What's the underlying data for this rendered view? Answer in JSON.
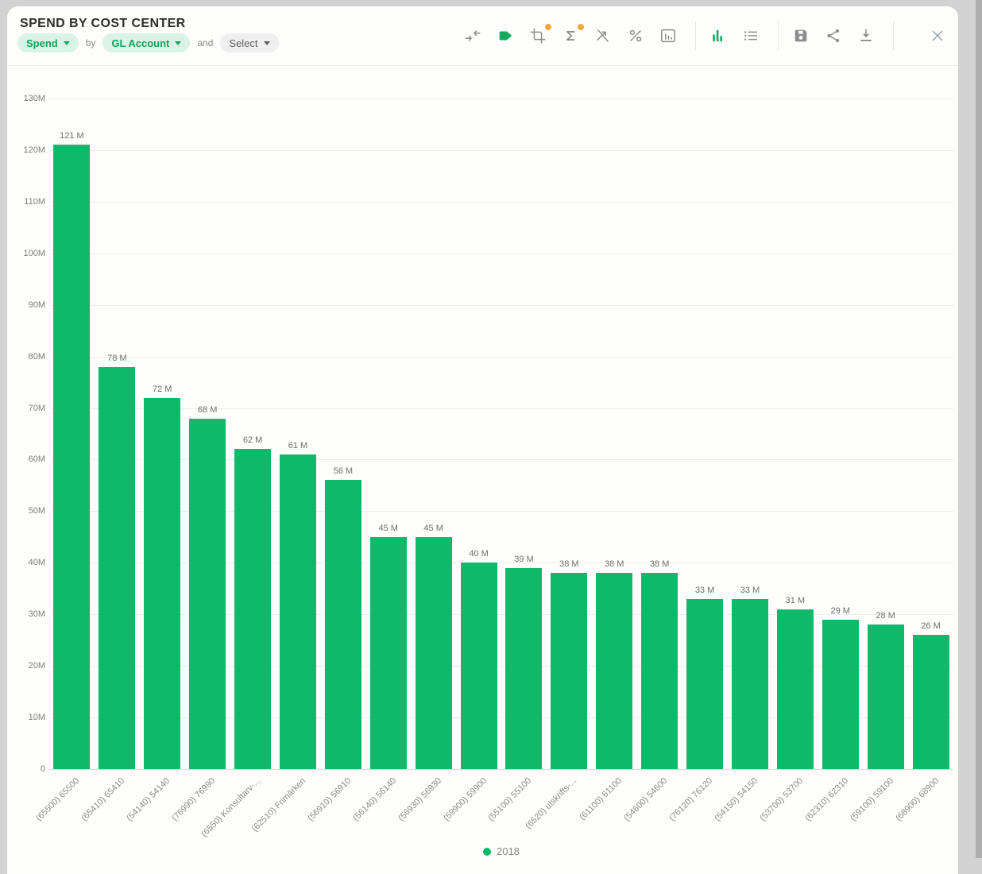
{
  "header": {
    "title": "SPEND BY COST CENTER",
    "measure": "Spend",
    "by_label": "by",
    "dimension": "GL Account",
    "and_label": "and",
    "secondary_dimension": "Select"
  },
  "toolbar": {
    "icons": [
      "merge-arrows-icon",
      "tag-icon",
      "crop-icon",
      "sigma-icon",
      "trend-off-icon",
      "percent-icon",
      "chart-box-icon",
      "bar-chart-view-icon",
      "list-view-icon",
      "save-icon",
      "share-icon",
      "download-icon",
      "close-icon"
    ],
    "badged_icons": [
      "crop-icon",
      "sigma-icon"
    ],
    "active_icon": "bar-chart-view-icon"
  },
  "colors": {
    "accent_green": "#10a95e",
    "pill_bg": "#d9f3e7",
    "pill_text": "#17a35c",
    "badge_orange": "#f2a73b",
    "icon_gray": "#8d8d8d",
    "bar_green": "#0fb969",
    "page_bg": "#d2d2d2"
  },
  "chart_data": {
    "type": "bar",
    "title": "SPEND BY COST CENTER",
    "ymax_m": 130,
    "ylim": [
      0,
      130000000
    ],
    "grid": true,
    "bar_color": "#0fb969",
    "legend_position": "bottom",
    "y_ticks": [
      {
        "v": 0,
        "label": "0"
      },
      {
        "v": 10,
        "label": "10M"
      },
      {
        "v": 20,
        "label": "20M"
      },
      {
        "v": 30,
        "label": "30M"
      },
      {
        "v": 40,
        "label": "40M"
      },
      {
        "v": 50,
        "label": "50M"
      },
      {
        "v": 60,
        "label": "60M"
      },
      {
        "v": 70,
        "label": "70M"
      },
      {
        "v": 80,
        "label": "80M"
      },
      {
        "v": 90,
        "label": "90M"
      },
      {
        "v": 100,
        "label": "100M"
      },
      {
        "v": 110,
        "label": "110M"
      },
      {
        "v": 120,
        "label": "120M"
      },
      {
        "v": 130,
        "label": "130M"
      }
    ],
    "categories": [
      "(65500) 65500",
      "(65410) 65410",
      "(54140) 54140",
      "(76990) 76990",
      "(6550) Konsultarv-...",
      "(62510) Frimärken",
      "(56910) 56910",
      "(56140) 56140",
      "(56930) 56930",
      "(59900) 59900",
      "(55100) 55100",
      "(6520) utskrifts-...",
      "(61100) 61100",
      "(54600) 54600",
      "(76120) 76120",
      "(54150) 54150",
      "(53700) 53700",
      "(62310) 62310",
      "(59100) 59100",
      "(68900) 68900"
    ],
    "series": [
      {
        "name": "2018",
        "color": "#0fb969",
        "values_m": [
          121,
          78,
          72,
          68,
          62,
          61,
          56,
          45,
          45,
          40,
          39,
          38,
          38,
          38,
          33,
          33,
          31,
          29,
          28,
          26
        ],
        "value_labels": [
          "121 M",
          "78 M",
          "72 M",
          "68 M",
          "62 M",
          "61 M",
          "56 M",
          "45 M",
          "45 M",
          "40 M",
          "39 M",
          "38 M",
          "38 M",
          "38 M",
          "33 M",
          "33 M",
          "31 M",
          "29 M",
          "28 M",
          "26 M"
        ]
      }
    ]
  }
}
